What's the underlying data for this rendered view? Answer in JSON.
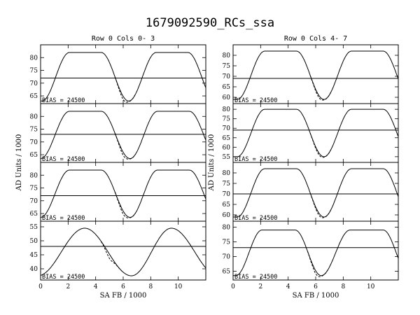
{
  "title": "1679092590_RCs_ssa",
  "chart_data": {
    "type": "line",
    "title": "1679092590_RCs_ssa",
    "xlabel": "SA FB / 1000",
    "ylabel": "AD Units / 1000",
    "xlim": [
      0,
      12
    ],
    "xticks": [
      0,
      2,
      4,
      6,
      8,
      10
    ],
    "columns": [
      {
        "subtitle": "Row  0  Cols  0- 3",
        "panels": [
          {
            "bias": "BIAS = 24500",
            "ylim": [
              62,
              85
            ],
            "yticks": [
              65,
              70,
              75,
              80
            ],
            "min": 63,
            "max": 82,
            "hline": 72,
            "peak1": [
              2.1,
              4.4
            ],
            "trough": 6.4,
            "peak2": [
              8.4,
              10.7
            ],
            "dip_at": 6.0,
            "dip_depth": 1.2
          },
          {
            "bias": "BIAS = 24500",
            "ylim": [
              62,
              85
            ],
            "yticks": [
              65,
              70,
              75,
              80
            ],
            "min": 63.5,
            "max": 82,
            "hline": 73,
            "peak1": [
              2.1,
              4.4
            ],
            "trough": 6.5,
            "peak2": [
              8.5,
              10.8
            ],
            "dip_at": 6.0,
            "dip_depth": 1.2
          },
          {
            "bias": "BIAS = 24500",
            "ylim": [
              62,
              85
            ],
            "yticks": [
              65,
              70,
              75,
              80
            ],
            "min": 63.5,
            "max": 82,
            "hline": 72,
            "peak1": [
              2.1,
              4.4
            ],
            "trough": 6.5,
            "peak2": [
              8.5,
              10.8
            ],
            "dip_at": 6.0,
            "dip_depth": 1.2
          },
          {
            "bias": "BIAS = 24500",
            "ylim": [
              36,
              57
            ],
            "yticks": [
              40,
              45,
              50,
              55
            ],
            "min": 37.5,
            "max": 54.5,
            "hline": 48,
            "peak1": [
              3.2,
              3.2
            ],
            "trough": 6.6,
            "peak2": [
              9.5,
              9.5
            ],
            "dip_at": 5.0,
            "dip_depth": 1.5
          }
        ]
      },
      {
        "subtitle": "Row  0  Cols  4- 7",
        "panels": [
          {
            "bias": "BIAS = 24500",
            "ylim": [
              57,
              85
            ],
            "yticks": [
              60,
              65,
              70,
              75,
              80
            ],
            "min": 59,
            "max": 82,
            "hline": 69,
            "peak1": [
              2.3,
              4.6
            ],
            "trough": 6.6,
            "peak2": [
              8.6,
              10.9
            ],
            "dip_at": 6.2,
            "dip_depth": 1.0
          },
          {
            "bias": "BIAS = 24500",
            "ylim": [
              52,
              83
            ],
            "yticks": [
              55,
              60,
              65,
              70,
              75,
              80
            ],
            "min": 55,
            "max": 80,
            "hline": 69,
            "peak1": [
              2.3,
              4.6
            ],
            "trough": 6.6,
            "peak2": [
              8.6,
              10.9
            ],
            "dip_at": 6.2,
            "dip_depth": 1.0
          },
          {
            "bias": "BIAS = 24500",
            "ylim": [
              57,
              85
            ],
            "yticks": [
              60,
              65,
              70,
              75,
              80
            ],
            "min": 59,
            "max": 82,
            "hline": 70,
            "peak1": [
              2.3,
              4.6
            ],
            "trough": 6.6,
            "peak2": [
              8.6,
              10.9
            ],
            "dip_at": 6.2,
            "dip_depth": 1.0
          },
          {
            "bias": "BIAS = 24500",
            "ylim": [
              62,
              82
            ],
            "yticks": [
              65,
              70,
              75,
              80
            ],
            "min": 63.5,
            "max": 79,
            "hline": 73,
            "peak1": [
              2.1,
              4.5
            ],
            "trough": 6.4,
            "peak2": [
              8.5,
              10.9
            ],
            "dip_at": 6.0,
            "dip_depth": 1.0
          }
        ]
      }
    ]
  }
}
